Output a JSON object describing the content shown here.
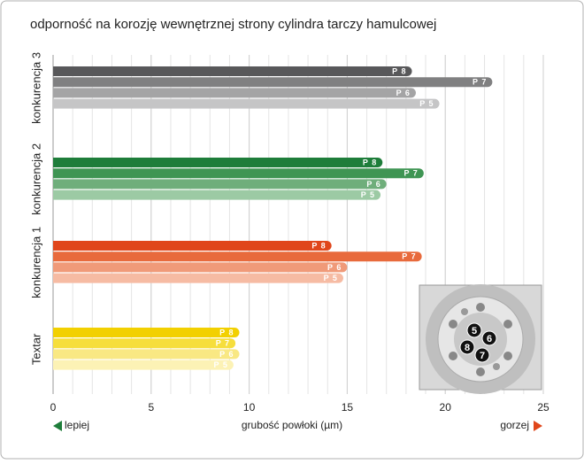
{
  "chart_data": {
    "type": "hbar",
    "title": "odporność na korozję wewnętrznej strony cylindra tarczy hamulcowej",
    "x_label": "grubość powłoki (µm)",
    "better_label": "lepiej",
    "worse_label": "gorzej",
    "categories": [
      "konkurencja 3",
      "konkurencja 2",
      "konkurencja 1",
      "Textar"
    ],
    "series": [
      {
        "name": "P 8",
        "colors": [
          "#58585a",
          "#1e7d3a",
          "#e0461b",
          "#f2d000"
        ],
        "values": [
          18.3,
          16.8,
          14.2,
          9.5
        ]
      },
      {
        "name": "P 7",
        "colors": [
          "#808081",
          "#3f9553",
          "#e86a3c",
          "#f6de3c"
        ],
        "values": [
          22.4,
          18.9,
          18.8,
          9.3
        ]
      },
      {
        "name": "P 6",
        "colors": [
          "#a4a4a5",
          "#6fae7b",
          "#f09a79",
          "#f9e883"
        ],
        "values": [
          18.5,
          17.0,
          15.0,
          9.5
        ]
      },
      {
        "name": "P 5",
        "colors": [
          "#c5c5c6",
          "#9ccaa4",
          "#f6bba3",
          "#fcf2b5"
        ],
        "values": [
          19.7,
          16.7,
          14.8,
          9.2
        ]
      }
    ],
    "xlim": [
      0,
      25
    ],
    "xticks": [
      0,
      5,
      10,
      15,
      20,
      25
    ],
    "grid": true,
    "grid_step": 1,
    "inset_labels": [
      "5",
      "6",
      "8",
      "7"
    ]
  }
}
